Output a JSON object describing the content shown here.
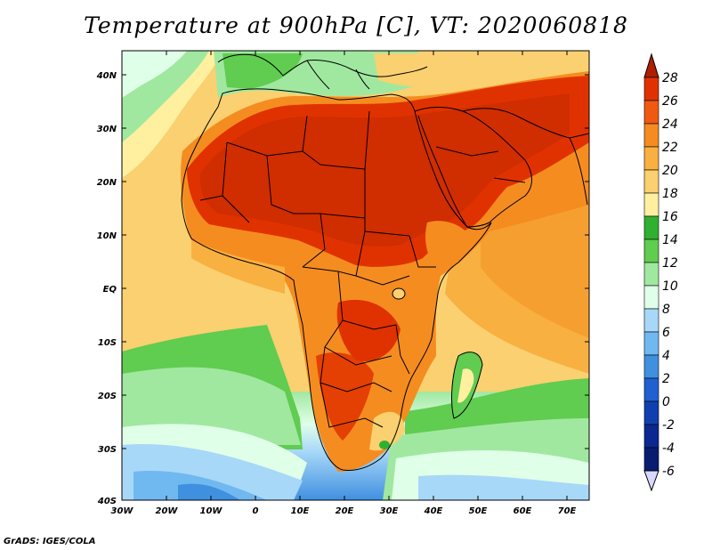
{
  "title": "Temperature at 900hPa [C], VT: 2020060818",
  "credit": "GrADS: IGES/COLA",
  "lat_labels": [
    "40N",
    "30N",
    "20N",
    "10N",
    "EQ",
    "10S",
    "20S",
    "30S",
    "40S"
  ],
  "lon_labels": [
    "30W",
    "20W",
    "10W",
    "0",
    "10E",
    "20E",
    "30E",
    "40E",
    "50E",
    "60E",
    "70E"
  ],
  "colorbar": {
    "labels": [
      "28",
      "26",
      "24",
      "22",
      "20",
      "18",
      "16",
      "14",
      "12",
      "10",
      "8",
      "6",
      "4",
      "2",
      "0",
      "-2",
      "-4",
      "-6"
    ],
    "colors": [
      "#c02800",
      "#e03200",
      "#f05a10",
      "#f58c20",
      "#f8b040",
      "#fad070",
      "#fff0a0",
      "#30b030",
      "#60cc50",
      "#a0e8a0",
      "#e0ffe8",
      "#a8d8f8",
      "#70b8f0",
      "#4090e0",
      "#2060d0",
      "#1040b0",
      "#0a2890",
      "#081c70"
    ],
    "under_color": "#d8d8ff",
    "over_color": "#b01e00"
  }
}
